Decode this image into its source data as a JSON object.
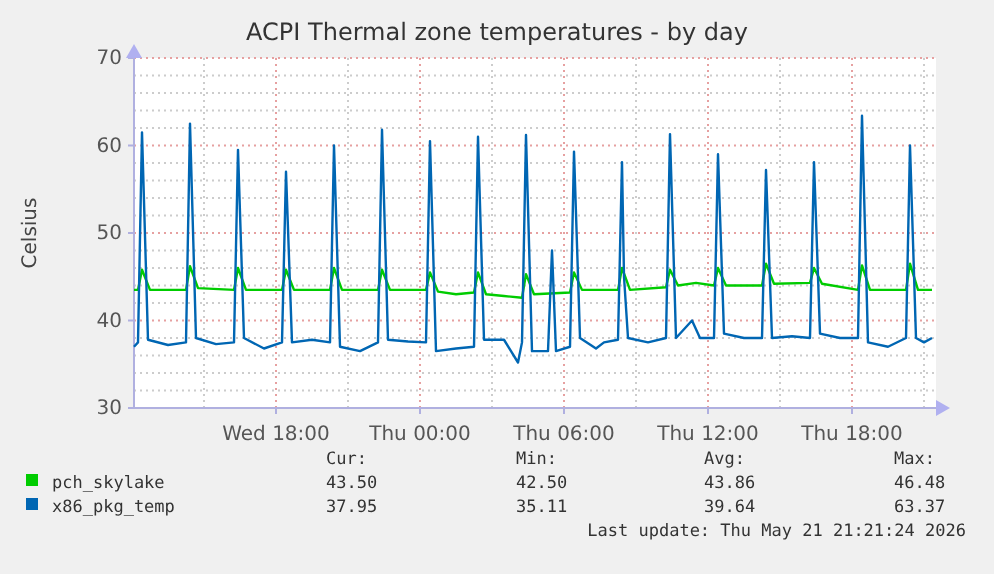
{
  "chart_data": {
    "type": "line",
    "title": "ACPI Thermal zone temperatures - by day",
    "ylabel": "Celsius",
    "xlim": [
      "2026-05-20T12:05",
      "2026-05-21T21:30"
    ],
    "xticks": [
      {
        "value": "2026-05-20T15:00",
        "label": null
      },
      {
        "value": "2026-05-20T18:00",
        "label": "Wed 18:00"
      },
      {
        "value": "2026-05-20T21:00",
        "label": null
      },
      {
        "value": "2026-05-21T00:00",
        "label": "Thu 00:00"
      },
      {
        "value": "2026-05-21T03:00",
        "label": null
      },
      {
        "value": "2026-05-21T06:00",
        "label": "Thu 06:00"
      },
      {
        "value": "2026-05-21T09:00",
        "label": null
      },
      {
        "value": "2026-05-21T12:00",
        "label": "Thu 12:00"
      },
      {
        "value": "2026-05-21T15:00",
        "label": null
      },
      {
        "value": "2026-05-21T18:00",
        "label": "Thu 18:00"
      },
      {
        "value": "2026-05-21T21:00",
        "label": null
      }
    ],
    "ylim": [
      30,
      70
    ],
    "yticks": [
      30,
      {
        "value": 32,
        "label": null
      },
      {
        "value": 34,
        "label": null
      },
      {
        "value": 36,
        "label": null
      },
      {
        "value": 38,
        "label": null
      },
      40,
      {
        "value": 42,
        "label": null
      },
      {
        "value": 44,
        "label": null
      },
      {
        "value": 46,
        "label": null
      },
      {
        "value": 48,
        "label": null
      },
      50,
      {
        "value": 52,
        "label": null
      },
      {
        "value": 54,
        "label": null
      },
      {
        "value": 56,
        "label": null
      },
      {
        "value": 58,
        "label": null
      },
      60,
      {
        "value": 62,
        "label": null
      },
      {
        "value": 64,
        "label": null
      },
      {
        "value": 66,
        "label": null
      },
      {
        "value": 68,
        "label": null
      },
      70
    ],
    "grid": true,
    "legend": "bottom",
    "marker": "none",
    "line_style": "solid",
    "series": [
      {
        "name": "pch_skylake",
        "color": "#00cc00",
        "x": [
          "2026-05-20T12:05",
          "2026-05-20T12:15",
          "2026-05-20T12:25",
          "2026-05-20T12:45",
          "2026-05-20T14:15",
          "2026-05-20T14:25",
          "2026-05-20T14:45",
          "2026-05-20T16:15",
          "2026-05-20T16:25",
          "2026-05-20T16:45",
          "2026-05-20T18:15",
          "2026-05-20T18:25",
          "2026-05-20T18:45",
          "2026-05-20T20:15",
          "2026-05-20T20:25",
          "2026-05-20T20:45",
          "2026-05-20T22:15",
          "2026-05-20T22:25",
          "2026-05-20T22:45",
          "2026-05-21T00:15",
          "2026-05-21T00:25",
          "2026-05-21T00:45",
          "2026-05-21T01:30",
          "2026-05-21T02:15",
          "2026-05-21T02:25",
          "2026-05-21T02:45",
          "2026-05-21T03:30",
          "2026-05-21T04:15",
          "2026-05-21T04:25",
          "2026-05-21T04:45",
          "2026-05-21T06:15",
          "2026-05-21T06:25",
          "2026-05-21T06:45",
          "2026-05-21T08:15",
          "2026-05-21T08:25",
          "2026-05-21T08:45",
          "2026-05-21T10:15",
          "2026-05-21T10:25",
          "2026-05-21T10:45",
          "2026-05-21T11:30",
          "2026-05-21T12:15",
          "2026-05-21T12:25",
          "2026-05-21T12:45",
          "2026-05-21T14:15",
          "2026-05-21T14:25",
          "2026-05-21T14:45",
          "2026-05-21T16:15",
          "2026-05-21T16:25",
          "2026-05-21T16:45",
          "2026-05-21T18:15",
          "2026-05-21T18:25",
          "2026-05-21T18:45",
          "2026-05-21T20:15",
          "2026-05-21T20:25",
          "2026-05-21T20:45",
          "2026-05-21T21:20"
        ],
        "values": [
          43.5,
          43.5,
          45.8,
          43.5,
          43.5,
          46.2,
          43.7,
          43.5,
          46.0,
          43.5,
          43.5,
          45.8,
          43.5,
          43.5,
          46.0,
          43.5,
          43.5,
          45.8,
          43.5,
          43.5,
          45.5,
          43.3,
          43.0,
          43.2,
          45.5,
          43.0,
          42.8,
          42.6,
          45.3,
          43.0,
          43.2,
          45.5,
          43.5,
          43.5,
          46.0,
          43.5,
          43.8,
          45.8,
          44.0,
          44.3,
          44.0,
          46.0,
          44.0,
          44.0,
          46.5,
          44.2,
          44.3,
          46.0,
          44.2,
          43.5,
          46.3,
          43.5,
          43.5,
          46.5,
          43.5,
          43.5
        ]
      },
      {
        "name": "x86_pkg_temp",
        "color": "#0066b3",
        "x": [
          "2026-05-20T12:05",
          "2026-05-20T12:15",
          "2026-05-20T12:25",
          "2026-05-20T12:40",
          "2026-05-20T13:30",
          "2026-05-20T14:15",
          "2026-05-20T14:25",
          "2026-05-20T14:40",
          "2026-05-20T15:30",
          "2026-05-20T16:15",
          "2026-05-20T16:25",
          "2026-05-20T16:40",
          "2026-05-20T17:30",
          "2026-05-20T18:15",
          "2026-05-20T18:25",
          "2026-05-20T18:40",
          "2026-05-20T19:30",
          "2026-05-20T20:15",
          "2026-05-20T20:25",
          "2026-05-20T20:40",
          "2026-05-20T21:30",
          "2026-05-20T22:15",
          "2026-05-20T22:25",
          "2026-05-20T22:40",
          "2026-05-20T23:30",
          "2026-05-21T00:15",
          "2026-05-21T00:25",
          "2026-05-21T00:40",
          "2026-05-21T01:30",
          "2026-05-21T02:15",
          "2026-05-21T02:25",
          "2026-05-21T02:40",
          "2026-05-21T03:30",
          "2026-05-21T04:05",
          "2026-05-21T04:15",
          "2026-05-21T04:25",
          "2026-05-21T04:40",
          "2026-05-21T05:20",
          "2026-05-21T05:30",
          "2026-05-21T05:40",
          "2026-05-21T06:15",
          "2026-05-21T06:25",
          "2026-05-21T06:40",
          "2026-05-21T07:20",
          "2026-05-21T07:40",
          "2026-05-21T08:15",
          "2026-05-21T08:25",
          "2026-05-21T08:30",
          "2026-05-21T08:40",
          "2026-05-21T09:30",
          "2026-05-21T10:15",
          "2026-05-21T10:25",
          "2026-05-21T10:40",
          "2026-05-21T11:20",
          "2026-05-21T11:40",
          "2026-05-21T12:15",
          "2026-05-21T12:25",
          "2026-05-21T12:40",
          "2026-05-21T13:30",
          "2026-05-21T14:15",
          "2026-05-21T14:25",
          "2026-05-21T14:40",
          "2026-05-21T15:30",
          "2026-05-21T16:15",
          "2026-05-21T16:25",
          "2026-05-21T16:40",
          "2026-05-21T17:30",
          "2026-05-21T18:15",
          "2026-05-21T18:25",
          "2026-05-21T18:40",
          "2026-05-21T19:30",
          "2026-05-21T20:15",
          "2026-05-21T20:25",
          "2026-05-21T20:40",
          "2026-05-21T21:00",
          "2026-05-21T21:20"
        ],
        "values": [
          37.0,
          37.5,
          61.5,
          37.8,
          37.2,
          37.5,
          62.5,
          38.0,
          37.3,
          37.5,
          59.5,
          38.0,
          36.8,
          37.5,
          57.0,
          37.5,
          37.8,
          37.5,
          60.0,
          37.0,
          36.5,
          37.5,
          61.8,
          37.8,
          37.6,
          37.5,
          60.5,
          36.5,
          36.8,
          37.0,
          61.0,
          37.8,
          37.8,
          35.2,
          37.5,
          61.2,
          36.5,
          36.5,
          48.0,
          36.5,
          37.0,
          59.3,
          38.0,
          36.8,
          37.5,
          37.8,
          58.1,
          45.0,
          38.0,
          37.5,
          38.0,
          61.3,
          38.0,
          40.0,
          38.0,
          38.0,
          59.0,
          38.5,
          38.0,
          38.0,
          57.2,
          38.0,
          38.2,
          38.0,
          58.1,
          38.5,
          38.0,
          38.0,
          63.4,
          37.5,
          37.0,
          38.0,
          60.0,
          38.0,
          37.5,
          38.0
        ]
      }
    ],
    "annotations": [
      "Cur:",
      "Min:",
      "Avg:",
      "Max:",
      "43.50",
      "42.50",
      "43.86",
      "46.48",
      "37.95",
      "35.11",
      "39.64",
      "63.37",
      "Last update: Thu May 21 21:21:24 2026"
    ]
  }
}
